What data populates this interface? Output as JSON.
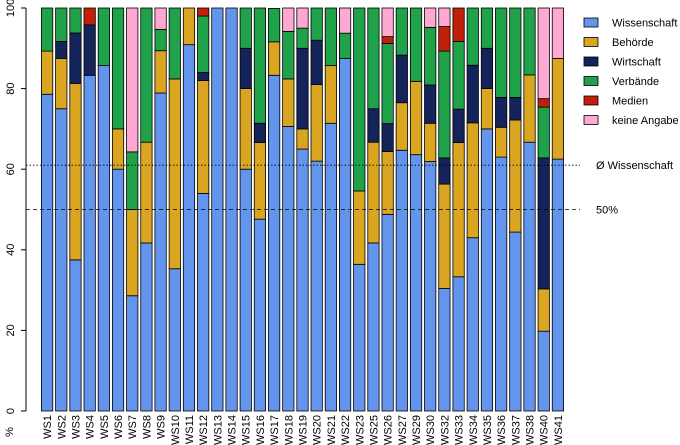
{
  "chart_data": {
    "type": "bar",
    "stacked": true,
    "title": "",
    "xlabel": "",
    "ylabel": "%",
    "ylim": [
      0,
      100
    ],
    "yticks": [
      0,
      20,
      40,
      60,
      80,
      100
    ],
    "categories": [
      "WS1",
      "WS2",
      "WS3",
      "WS4",
      "WS5",
      "WS6",
      "WS7",
      "WS8",
      "WS9",
      "WS10",
      "WS11",
      "WS12",
      "WS13",
      "WS14",
      "WS15",
      "WS16",
      "WS17",
      "WS18",
      "WS19",
      "WS20",
      "WS21",
      "WS22",
      "WS23",
      "WS25",
      "WS26",
      "WS27",
      "WS29",
      "WS30",
      "WS32",
      "WS33",
      "WS34",
      "WS35",
      "WS36",
      "WS37",
      "WS38",
      "WS40",
      "WS41"
    ],
    "legend_position": "top-right",
    "series": [
      {
        "name": "Wissenschaft",
        "color": "#6495ED",
        "values": [
          78.6,
          75.0,
          37.5,
          83.3,
          85.7,
          60.0,
          28.6,
          41.7,
          78.9,
          35.3,
          90.9,
          54.0,
          100,
          100,
          60.0,
          47.6,
          83.3,
          70.6,
          65.0,
          62.0,
          71.4,
          87.5,
          36.4,
          41.7,
          48.8,
          64.7,
          63.6,
          61.9,
          30.4,
          33.3,
          43.0,
          70.0,
          63.0,
          44.4,
          66.7,
          19.8,
          62.5
        ]
      },
      {
        "name": "Behörde",
        "color": "#DAA520",
        "values": [
          10.7,
          12.5,
          43.8,
          0,
          0,
          10.0,
          21.4,
          25.0,
          10.5,
          47.1,
          9.1,
          28.0,
          0,
          0,
          20.0,
          19.0,
          8.3,
          11.8,
          5.0,
          19.0,
          14.3,
          0,
          18.2,
          25.0,
          15.6,
          11.8,
          18.2,
          9.5,
          25.9,
          33.3,
          28.5,
          10.0,
          7.4,
          27.8,
          16.7,
          10.5,
          25.0
        ]
      },
      {
        "name": "Wirtschaft",
        "color": "#14245A",
        "values": [
          0,
          4.2,
          12.5,
          12.5,
          0,
          0,
          0,
          0,
          0,
          0,
          0,
          2.0,
          0,
          0,
          10.0,
          4.8,
          0,
          0,
          20.0,
          11.0,
          0,
          0,
          0,
          8.3,
          6.9,
          11.8,
          0,
          9.5,
          6.5,
          8.3,
          14.3,
          10.0,
          7.4,
          5.6,
          0,
          32.5,
          0
        ]
      },
      {
        "name": "Verbände",
        "color": "#1FA24A",
        "values": [
          10.7,
          8.3,
          6.2,
          0,
          14.3,
          30.0,
          14.3,
          33.3,
          5.3,
          17.6,
          0,
          14.0,
          0,
          0,
          10.0,
          28.6,
          8.3,
          11.8,
          5.0,
          8.0,
          14.3,
          6.25,
          45.4,
          25.0,
          19.9,
          11.7,
          18.2,
          14.3,
          26.5,
          16.8,
          14.2,
          10.0,
          22.2,
          22.2,
          16.6,
          12.6,
          0
        ]
      },
      {
        "name": "Medien",
        "color": "#C0200A",
        "values": [
          0,
          0,
          0,
          4.2,
          0,
          0,
          0,
          0,
          0,
          0,
          0,
          2.0,
          0,
          0,
          0,
          0,
          0,
          0,
          0,
          0,
          0,
          0,
          0,
          0,
          1.7,
          0,
          0,
          0,
          6.1,
          8.3,
          0,
          0,
          0,
          0,
          0,
          2.1,
          0
        ]
      },
      {
        "name": "keine Angabe",
        "color": "#FFA8D2",
        "values": [
          0,
          0,
          0,
          0,
          0,
          0,
          35.7,
          0,
          5.3,
          0,
          0,
          0,
          0,
          0,
          0,
          0,
          0,
          5.8,
          5.0,
          0,
          0,
          6.25,
          0,
          0,
          7.1,
          0,
          0,
          4.8,
          4.6,
          0,
          0,
          0,
          0,
          0,
          0,
          22.5,
          12.5
        ]
      }
    ],
    "reference_lines": [
      {
        "label": "Ø Wissenschaft",
        "value": 61,
        "style": "dotted"
      },
      {
        "label": "50%",
        "value": 50,
        "style": "dashed"
      }
    ]
  }
}
